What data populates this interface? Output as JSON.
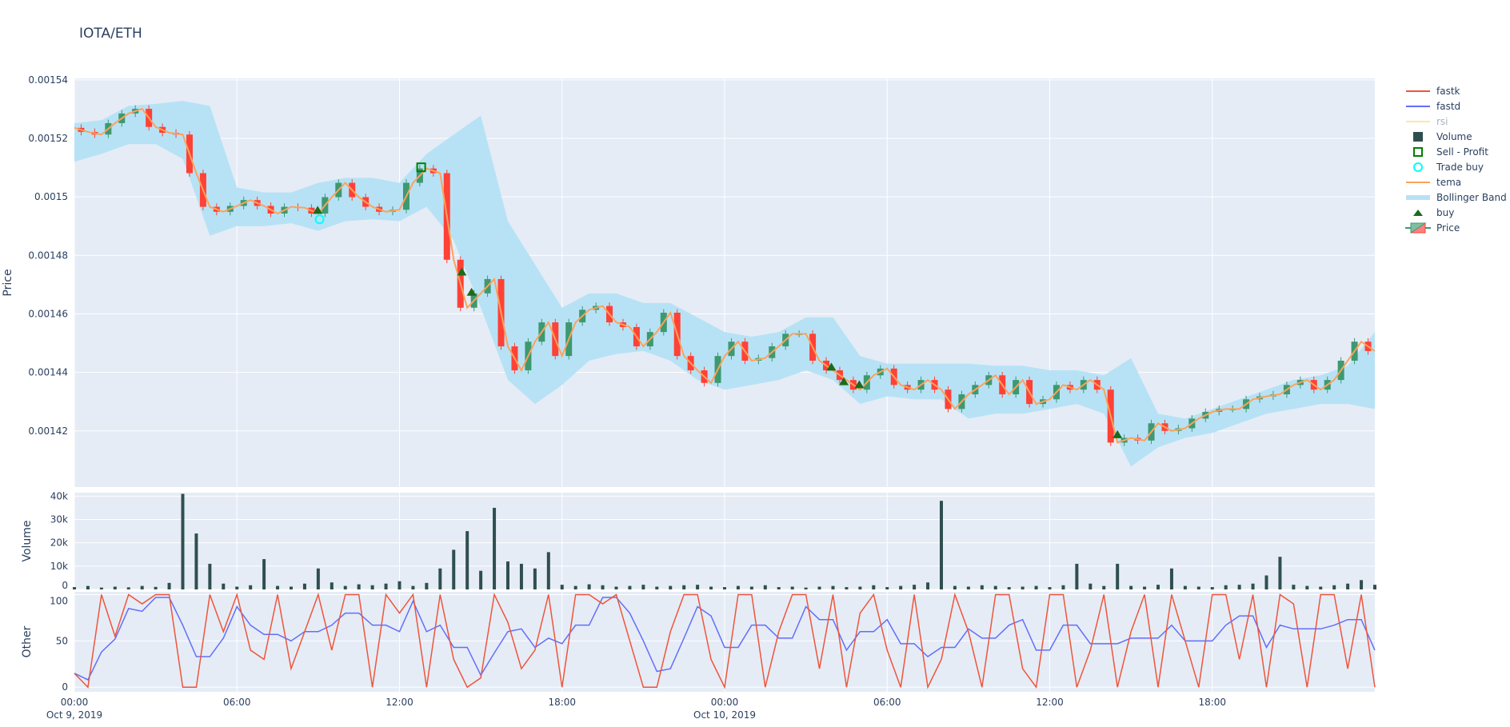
{
  "title": "IOTA/ETH",
  "legend": [
    {
      "label": "fastk",
      "color": "#ef553b",
      "symbol": "line"
    },
    {
      "label": "fastd",
      "color": "#636efa",
      "symbol": "line"
    },
    {
      "label": "rsi",
      "color": "#ffe5a8",
      "symbol": "line",
      "hidden": true
    },
    {
      "label": "Volume",
      "color": "#2f4f4f",
      "symbol": "square"
    },
    {
      "label": "Sell - Profit",
      "color": "#008000",
      "symbol": "square-open"
    },
    {
      "label": "Trade buy",
      "color": "#00ffff",
      "symbol": "circle-open"
    },
    {
      "label": "tema",
      "color": "#ffa15a",
      "symbol": "line"
    },
    {
      "label": "Bollinger Band",
      "color": "#b7e2f5",
      "symbol": "band"
    },
    {
      "label": "buy",
      "color": "#1b6b1b",
      "symbol": "triangle-up"
    },
    {
      "label": "Price",
      "color": "#3d9970",
      "symbol": "candle"
    }
  ],
  "chart_data": [
    {
      "type": "candlestick",
      "panel": "price",
      "ylabel": "Price",
      "ylim": [
        0.0014008,
        0.0015405
      ],
      "yticks": [
        "0.00142",
        "0.00144",
        "0.00146",
        "0.00148",
        "0.0015",
        "0.00152",
        "0.00154"
      ],
      "ytick_values": [
        0.00142,
        0.00144,
        0.00146,
        0.00148,
        0.0015,
        0.00152,
        0.00154
      ],
      "grid": true,
      "x_start": "2019-10-09 00:00",
      "x_interval_minutes": 30,
      "colors": {
        "increasing": "#3d9970",
        "decreasing": "#ff4136",
        "tema": "#ffa15a",
        "band": "#b7e2f5"
      },
      "tema": [
        0.0015236,
        0.0015222,
        0.0015213,
        0.0015252,
        0.0015285,
        0.0015301,
        0.0015239,
        0.0015219,
        0.0015213,
        0.0015081,
        0.0014966,
        0.0014949,
        0.0014969,
        0.0014989,
        0.0014969,
        0.0014943,
        0.0014966,
        0.0014963,
        0.0014943,
        0.0014999,
        0.0015048,
        0.0014999,
        0.0014966,
        0.0014949,
        0.0014956,
        0.0015048,
        0.0015097,
        0.0015081,
        0.0014785,
        0.0014621,
        0.001467,
        0.0014719,
        0.0014489,
        0.0014407,
        0.0014505,
        0.0014571,
        0.0014456,
        0.0014571,
        0.0014614,
        0.0014627,
        0.0014571,
        0.0014555,
        0.0014489,
        0.0014538,
        0.0014604,
        0.0014456,
        0.0014407,
        0.0014364,
        0.0014456,
        0.0014505,
        0.001444,
        0.0014449,
        0.0014489,
        0.0014532,
        0.0014532,
        0.001444,
        0.0014407,
        0.0014374,
        0.0014341,
        0.001439,
        0.0014413,
        0.0014357,
        0.0014341,
        0.0014374,
        0.0014341,
        0.0014275,
        0.0014325,
        0.0014357,
        0.001439,
        0.0014325,
        0.0014374,
        0.0014292,
        0.0014308,
        0.0014357,
        0.0014341,
        0.0014374,
        0.0014341,
        0.001416,
        0.0014176,
        0.0014167,
        0.0014226,
        0.00142,
        0.0014209,
        0.0014242,
        0.0014265,
        0.0014275,
        0.0014275,
        0.0014308,
        0.0014318,
        0.0014325,
        0.0014357,
        0.0014374,
        0.0014341,
        0.0014374,
        0.001444,
        0.0014505,
        0.0014473
      ],
      "bb_interval_minutes": 60,
      "bb_upper": [
        0.0015252,
        0.0015262,
        0.0015311,
        0.0015318,
        0.0015328,
        0.0015311,
        0.0015032,
        0.0015015,
        0.0015015,
        0.0015048,
        0.0015065,
        0.0015065,
        0.0015048,
        0.0015147,
        0.0015213,
        0.0015278,
        0.0014917,
        0.0014769,
        0.0014621,
        0.001467,
        0.001467,
        0.0014637,
        0.0014637,
        0.0014588,
        0.0014538,
        0.0014522,
        0.0014538,
        0.0014588,
        0.0014588,
        0.0014456,
        0.001443,
        0.001443,
        0.001443,
        0.001443,
        0.0014423,
        0.0014423,
        0.0014407,
        0.0014407,
        0.001439,
        0.0014449,
        0.0014259,
        0.0014242,
        0.0014275,
        0.0014308,
        0.0014341,
        0.0014374,
        0.001439,
        0.0014423,
        0.0014538
      ],
      "bb_lower": [
        0.001512,
        0.0015147,
        0.001518,
        0.001518,
        0.001513,
        0.0014867,
        0.00149,
        0.00149,
        0.001491,
        0.0014884,
        0.0014917,
        0.0014923,
        0.0014917,
        0.0014966,
        0.0014851,
        0.0014621,
        0.0014374,
        0.0014292,
        0.0014357,
        0.001444,
        0.0014463,
        0.0014473,
        0.001444,
        0.0014374,
        0.0014341,
        0.0014357,
        0.0014374,
        0.0014407,
        0.0014374,
        0.0014292,
        0.0014318,
        0.0014308,
        0.0014308,
        0.0014242,
        0.0014259,
        0.0014259,
        0.0014275,
        0.0014292,
        0.0014259,
        0.0014078,
        0.0014144,
        0.0014176,
        0.0014193,
        0.0014226,
        0.0014259,
        0.0014275,
        0.0014292,
        0.0014292,
        0.0014275
      ],
      "buy_signals": [
        {
          "hour": 8.98,
          "price": 0.0014953
        },
        {
          "hour": 14.3,
          "price": 0.0014742
        },
        {
          "hour": 14.66,
          "price": 0.0014673
        },
        {
          "hour": 27.94,
          "price": 0.0014417
        },
        {
          "hour": 28.4,
          "price": 0.0014367
        },
        {
          "hour": 28.97,
          "price": 0.0014357
        },
        {
          "hour": 38.5,
          "price": 0.0014186
        }
      ],
      "trade_buys": [
        {
          "hour": 9.05,
          "price": 0.0014923
        }
      ],
      "sell_profit": [
        {
          "hour": 12.8,
          "price": 0.0015101
        }
      ]
    },
    {
      "type": "bar",
      "panel": "volume",
      "ylabel": "Volume",
      "ylim": [
        0,
        41500
      ],
      "yticks": [
        "0",
        "10k",
        "20k",
        "30k",
        "40k"
      ],
      "ytick_values": [
        0,
        10000,
        20000,
        30000,
        40000
      ],
      "color": "#2f4f4f",
      "x_interval_minutes": 30,
      "values": [
        1000,
        1500,
        800,
        1200,
        900,
        1500,
        1100,
        2800,
        41000,
        24000,
        11000,
        2500,
        1200,
        1800,
        13000,
        1500,
        1200,
        2500,
        9000,
        3000,
        1500,
        2200,
        1800,
        2500,
        3500,
        1500,
        2800,
        9000,
        17000,
        25000,
        8000,
        35000,
        12000,
        11000,
        9000,
        16000,
        2000,
        1500,
        2200,
        1800,
        1200,
        1500,
        2000,
        1200,
        1500,
        1800,
        2000,
        1200,
        1000,
        1500,
        1200,
        1800,
        1000,
        1200,
        800,
        1200,
        1500,
        1000,
        1200,
        1800,
        1000,
        1500,
        2000,
        3000,
        38000,
        1500,
        1200,
        1800,
        1500,
        1000,
        1200,
        1500,
        1000,
        1800,
        11000,
        2500,
        1500,
        11000,
        1500,
        1200,
        2000,
        9000,
        1500,
        1200,
        1000,
        1800,
        2000,
        2500,
        6000,
        14000,
        2000,
        1500,
        1200,
        1800,
        2500,
        4000,
        2000
      ]
    },
    {
      "type": "line",
      "panel": "other",
      "ylabel": "Other",
      "ylim": [
        -5,
        103
      ],
      "yticks": [
        "0",
        "50",
        "100"
      ],
      "ytick_values": [
        0,
        50,
        100
      ],
      "x_interval_minutes": 30,
      "series": [
        {
          "name": "fastk",
          "color": "#ef553b",
          "values": [
            15,
            0,
            100,
            55,
            100,
            90,
            100,
            100,
            0,
            0,
            100,
            60,
            100,
            40,
            30,
            100,
            20,
            60,
            100,
            40,
            100,
            100,
            0,
            100,
            80,
            100,
            0,
            100,
            30,
            0,
            10,
            100,
            70,
            20,
            40,
            100,
            0,
            100,
            100,
            90,
            100,
            50,
            0,
            0,
            60,
            100,
            100,
            30,
            0,
            100,
            100,
            0,
            60,
            100,
            100,
            20,
            100,
            0,
            80,
            100,
            40,
            0,
            100,
            0,
            30,
            100,
            60,
            0,
            100,
            100,
            20,
            0,
            100,
            100,
            0,
            40,
            100,
            0,
            60,
            100,
            0,
            100,
            50,
            0,
            100,
            100,
            30,
            100,
            0,
            100,
            90,
            0,
            100,
            100,
            20,
            100,
            0
          ]
        },
        {
          "name": "fastd",
          "color": "#636efa",
          "values": [
            15,
            8,
            38,
            52,
            85,
            82,
            97,
            97,
            67,
            33,
            33,
            53,
            87,
            67,
            57,
            57,
            50,
            60,
            60,
            67,
            80,
            80,
            67,
            67,
            60,
            93,
            60,
            67,
            43,
            43,
            13,
            37,
            60,
            63,
            43,
            53,
            47,
            67,
            67,
            97,
            97,
            80,
            50,
            17,
            20,
            53,
            87,
            77,
            43,
            43,
            67,
            67,
            53,
            53,
            87,
            73,
            73,
            40,
            60,
            60,
            73,
            47,
            47,
            33,
            43,
            43,
            63,
            53,
            53,
            67,
            73,
            40,
            40,
            67,
            67,
            47,
            47,
            47,
            53,
            53,
            53,
            67,
            50,
            50,
            50,
            67,
            77,
            77,
            43,
            67,
            63,
            63,
            63,
            67,
            73,
            73,
            40
          ]
        }
      ]
    }
  ],
  "xaxis": {
    "ticks": [
      {
        "hour": 0,
        "label": "00:00",
        "date": "Oct 9, 2019"
      },
      {
        "hour": 6,
        "label": "06:00"
      },
      {
        "hour": 12,
        "label": "12:00"
      },
      {
        "hour": 18,
        "label": "18:00"
      },
      {
        "hour": 24,
        "label": "00:00",
        "date": "Oct 10, 2019"
      },
      {
        "hour": 30,
        "label": "06:00"
      },
      {
        "hour": 36,
        "label": "12:00"
      },
      {
        "hour": 42,
        "label": "18:00"
      }
    ],
    "range_hours": [
      0,
      48
    ]
  }
}
